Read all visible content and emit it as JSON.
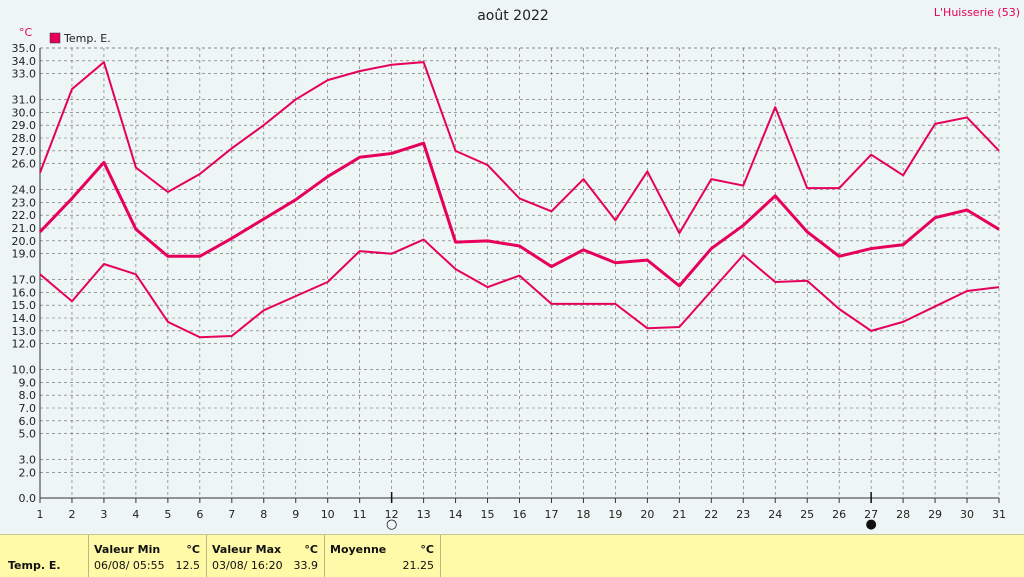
{
  "header": {
    "title": "août 2022",
    "station": "L'Huisserie (53)"
  },
  "colors": {
    "series": "#e6005c",
    "grid": "#666666",
    "background": "#eef5f5",
    "footer": "#fffaa8"
  },
  "chart_data": {
    "type": "line",
    "title": "août 2022",
    "ylabel": "°C",
    "ylim": [
      0,
      35
    ],
    "grid": true,
    "legend": "top-left",
    "legend_label": "Temp. E.",
    "x": [
      1,
      2,
      3,
      4,
      5,
      6,
      7,
      8,
      9,
      10,
      11,
      12,
      13,
      14,
      15,
      16,
      17,
      18,
      19,
      20,
      21,
      22,
      23,
      24,
      25,
      26,
      27,
      28,
      29,
      30,
      31
    ],
    "y_ticks": [
      "0.0",
      "2.0",
      "3.0",
      "5.0",
      "6.0",
      "7.0",
      "8.0",
      "9.0",
      "10.0",
      "12.0",
      "13.0",
      "14.0",
      "15.0",
      "16.0",
      "17.0",
      "19.0",
      "20.0",
      "21.0",
      "22.0",
      "23.0",
      "24.0",
      "26.0",
      "27.0",
      "28.0",
      "29.0",
      "30.0",
      "31.0",
      "33.0",
      "34.0",
      "35.0"
    ],
    "series": [
      {
        "role": "max",
        "values": [
          25.3,
          31.8,
          33.9,
          25.7,
          23.8,
          25.2,
          27.2,
          29.0,
          31.0,
          32.5,
          33.2,
          33.7,
          33.9,
          27.0,
          25.9,
          23.3,
          22.3,
          24.8,
          21.6,
          25.4,
          20.6,
          24.8,
          24.3,
          30.4,
          24.1,
          24.1,
          26.7,
          25.1,
          29.1,
          29.6,
          27.0
        ]
      },
      {
        "role": "mean",
        "values": [
          20.7,
          23.3,
          26.1,
          20.9,
          18.8,
          18.8,
          20.2,
          21.7,
          23.2,
          25.0,
          26.5,
          26.8,
          27.6,
          19.9,
          20.0,
          19.6,
          18.0,
          19.3,
          18.3,
          18.5,
          16.5,
          19.4,
          21.2,
          23.5,
          20.7,
          18.8,
          19.4,
          19.7,
          21.8,
          22.4,
          20.9
        ]
      },
      {
        "role": "min",
        "values": [
          17.4,
          15.3,
          18.2,
          17.4,
          13.7,
          12.5,
          12.6,
          14.6,
          15.7,
          16.8,
          19.2,
          19.0,
          20.1,
          17.8,
          16.4,
          17.3,
          15.1,
          15.1,
          15.1,
          13.2,
          13.3,
          16.1,
          18.9,
          16.8,
          16.9,
          14.7,
          13.0,
          13.7,
          14.9,
          16.1,
          16.4
        ]
      }
    ],
    "x_markers": [
      {
        "day": 12,
        "symbol": "○"
      },
      {
        "day": 27,
        "symbol": "●"
      }
    ]
  },
  "footer": {
    "series_label": "Temp. E.",
    "min": {
      "heading": "Valeur Min",
      "unit": "°C",
      "datetime": "06/08/ 05:55",
      "value": "12.5"
    },
    "max": {
      "heading": "Valeur Max",
      "unit": "°C",
      "datetime": "03/08/ 16:20",
      "value": "33.9"
    },
    "mean": {
      "heading": "Moyenne",
      "unit": "°C",
      "value": "21.25"
    }
  }
}
